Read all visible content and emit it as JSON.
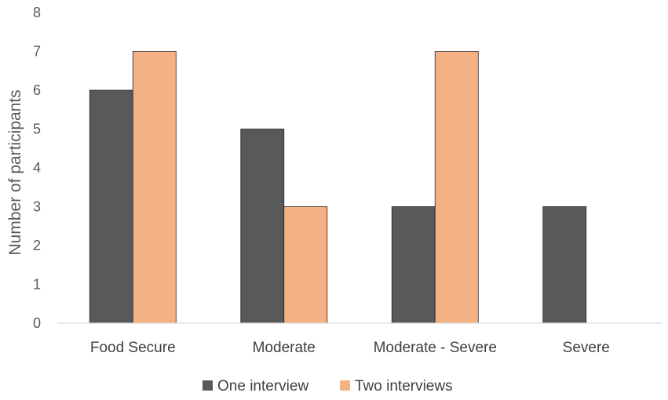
{
  "chart_data": {
    "type": "bar",
    "categories": [
      "Food Secure",
      "Moderate",
      "Moderate - Severe",
      "Severe"
    ],
    "series": [
      {
        "name": "One interview",
        "values": [
          6,
          5,
          3,
          3
        ],
        "color": "#595959"
      },
      {
        "name": "Two interviews",
        "values": [
          7,
          3,
          7,
          0
        ],
        "color": "#F4B183"
      }
    ],
    "ylabel": "Number of participants",
    "ylim": [
      0,
      8
    ],
    "yticks": [
      0,
      1,
      2,
      3,
      4,
      5,
      6,
      7,
      8
    ],
    "grid": false,
    "legend_position": "bottom",
    "axis_color": "#d9d9d9"
  }
}
